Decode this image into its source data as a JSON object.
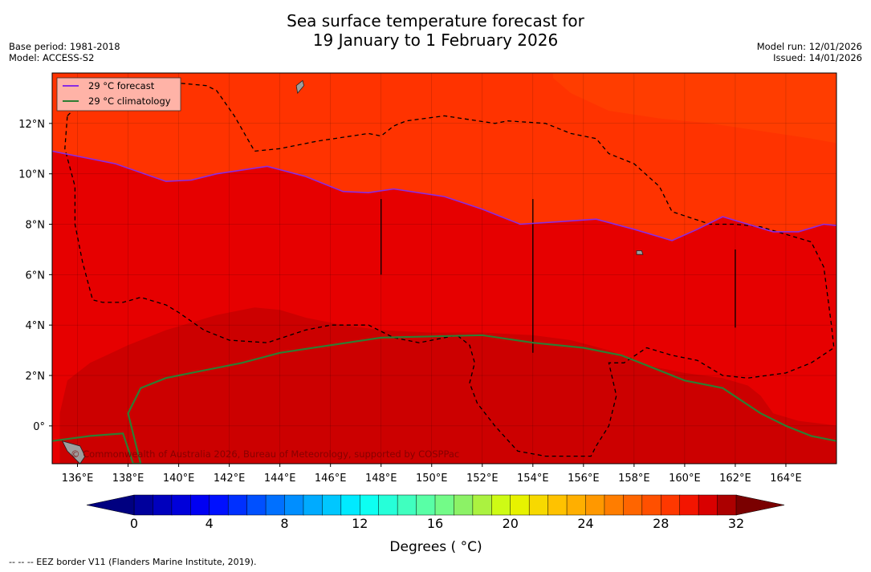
{
  "title_line1": "Sea surface temperature forecast for",
  "title_line2": "19 January to 1 February 2026",
  "base_period": "Base period: 1981-2018",
  "model": "Model: ACCESS-S2",
  "model_run": "Model run: 12/01/2026",
  "issued": "Issued: 14/01/2026",
  "copyright": "© Commonwealth of Australia 2026, Bureau of Meteorology, supported by COSPPac",
  "footnote": "--  --  -- EEZ border V11 (Flanders Marine Institute, 2019).",
  "colors": {
    "forecast_line": "#8a2be2",
    "climatology_line": "#2e7d32",
    "legend_bg": "#ffb3a7"
  },
  "chart_data": {
    "type": "heatmap",
    "title": "Sea surface temperature forecast for 19 January to 1 February 2026",
    "x_range": [
      135,
      166
    ],
    "y_range": [
      -1.5,
      14
    ],
    "x_ticks": [
      136,
      138,
      140,
      142,
      144,
      146,
      148,
      150,
      152,
      154,
      156,
      158,
      160,
      162,
      164
    ],
    "x_tick_labels": [
      "136°E",
      "138°E",
      "140°E",
      "142°E",
      "144°E",
      "146°E",
      "148°E",
      "150°E",
      "152°E",
      "154°E",
      "156°E",
      "158°E",
      "160°E",
      "162°E",
      "164°E"
    ],
    "y_ticks": [
      0,
      2,
      4,
      6,
      8,
      10,
      12
    ],
    "y_tick_labels": [
      "0°",
      "2°N",
      "4°N",
      "6°N",
      "8°N",
      "10°N",
      "12°N"
    ],
    "legend": {
      "position": "top-left",
      "entries": [
        {
          "label": "29 °C  forecast",
          "color": "#8a2be2"
        },
        {
          "label": "29 °C  climatology",
          "color": "#2e7d32"
        }
      ]
    },
    "colorbar": {
      "label": "Degrees ( °C)",
      "min": 0,
      "max": 32,
      "step": 1,
      "ticks": [
        0,
        4,
        8,
        12,
        16,
        20,
        24,
        28,
        32
      ],
      "tick_labels": [
        "0",
        "4",
        "8",
        "12",
        "16",
        "20",
        "24",
        "28",
        "32"
      ]
    },
    "fields": [
      {
        "name": "sst_28_29",
        "value_range": [
          28,
          29
        ],
        "color": "#ff3300"
      },
      {
        "name": "sst_29_30",
        "value_range": [
          29,
          30
        ],
        "color": "#e60000"
      },
      {
        "name": "sst_30_31",
        "value_range": [
          30,
          31
        ],
        "color": "#cc0000"
      }
    ],
    "forecast_29C": [
      [
        135,
        10.9
      ],
      [
        137.5,
        10.4
      ],
      [
        139.5,
        9.7
      ],
      [
        140.5,
        9.75
      ],
      [
        141.5,
        10
      ],
      [
        143.5,
        10.3
      ],
      [
        145,
        9.9
      ],
      [
        146.5,
        9.3
      ],
      [
        147.5,
        9.25
      ],
      [
        148.5,
        9.4
      ],
      [
        150.5,
        9.1
      ],
      [
        152,
        8.6
      ],
      [
        153.5,
        8.0
      ],
      [
        155,
        8.1
      ],
      [
        156.5,
        8.2
      ],
      [
        158,
        7.8
      ],
      [
        159.5,
        7.35
      ],
      [
        160.5,
        7.8
      ],
      [
        161.5,
        8.3
      ],
      [
        162.5,
        8.0
      ],
      [
        163.5,
        7.7
      ],
      [
        164.5,
        7.7
      ],
      [
        165.5,
        8.0
      ],
      [
        166,
        7.95
      ]
    ],
    "climatology_29C": [
      [
        135,
        -0.6
      ],
      [
        136.5,
        -0.4
      ],
      [
        137.8,
        -0.3
      ],
      [
        138.2,
        -1.5
      ],
      [
        138.5,
        -1.5
      ],
      [
        138,
        0.5
      ],
      [
        138.5,
        1.5
      ],
      [
        139.5,
        1.9
      ],
      [
        141,
        2.2
      ],
      [
        142.5,
        2.5
      ],
      [
        144,
        2.9
      ],
      [
        146,
        3.2
      ],
      [
        148,
        3.5
      ],
      [
        150,
        3.55
      ],
      [
        152,
        3.6
      ],
      [
        154,
        3.3
      ],
      [
        156,
        3.1
      ],
      [
        157.5,
        2.8
      ],
      [
        159,
        2.2
      ],
      [
        160,
        1.8
      ],
      [
        161.5,
        1.5
      ],
      [
        163,
        0.5
      ],
      [
        164,
        0.0
      ],
      [
        165,
        -0.4
      ],
      [
        166,
        -0.6
      ]
    ],
    "eez_border_segments": [
      [
        [
          135.6,
          12.3
        ],
        [
          136.3,
          13
        ],
        [
          137.5,
          13.3
        ],
        [
          138.6,
          13.55
        ],
        [
          140,
          13.6
        ],
        [
          141.1,
          13.5
        ],
        [
          141.5,
          13.3
        ],
        [
          142.2,
          12.3
        ],
        [
          143,
          10.9
        ],
        [
          144,
          11
        ],
        [
          145.5,
          11.3
        ],
        [
          147.5,
          11.6
        ],
        [
          148,
          11.5
        ],
        [
          148.5,
          11.9
        ],
        [
          149,
          12.1
        ],
        [
          150.5,
          12.3
        ],
        [
          152.5,
          12.0
        ],
        [
          153,
          12.1
        ],
        [
          154.5,
          12
        ],
        [
          155.5,
          11.6
        ],
        [
          156.5,
          11.4
        ],
        [
          157,
          10.8
        ],
        [
          158,
          10.4
        ],
        [
          159,
          9.5
        ],
        [
          159.5,
          8.5
        ],
        [
          161,
          8.0
        ],
        [
          162,
          8.0
        ],
        [
          163,
          7.9
        ],
        [
          164,
          7.6
        ],
        [
          165,
          7.3
        ],
        [
          165.5,
          6.3
        ],
        [
          165.8,
          4.0
        ],
        [
          165.9,
          3.1
        ],
        [
          165,
          2.5
        ],
        [
          164,
          2.1
        ],
        [
          162.5,
          1.9
        ],
        [
          161.5,
          2.0
        ],
        [
          160.5,
          2.6
        ],
        [
          159.5,
          2.8
        ],
        [
          158.5,
          3.1
        ],
        [
          157.6,
          2.5
        ],
        [
          157,
          2.5
        ],
        [
          157.3,
          1.2
        ],
        [
          157,
          0.0
        ],
        [
          156.5,
          -0.8
        ],
        [
          156.3,
          -1.2
        ],
        [
          154.5,
          -1.2
        ],
        [
          153.4,
          -1.0
        ],
        [
          152.5,
          0.0
        ],
        [
          151.8,
          0.9
        ],
        [
          151.5,
          1.7
        ],
        [
          151.7,
          2.5
        ],
        [
          151.5,
          3.2
        ],
        [
          151.0,
          3.6
        ],
        [
          149.5,
          3.3
        ],
        [
          148.5,
          3.5
        ],
        [
          147.5,
          4.0
        ],
        [
          146,
          4.0
        ],
        [
          145,
          3.8
        ],
        [
          143.5,
          3.3
        ],
        [
          142,
          3.4
        ],
        [
          141,
          3.8
        ],
        [
          140,
          4.5
        ],
        [
          139.5,
          4.8
        ],
        [
          138.5,
          5.1
        ],
        [
          137.8,
          4.9
        ],
        [
          137,
          4.9
        ],
        [
          136.6,
          5.0
        ],
        [
          136.2,
          6.5
        ],
        [
          135.9,
          8
        ],
        [
          135.9,
          9.5
        ],
        [
          135.5,
          11
        ],
        [
          135.6,
          12.3
        ]
      ]
    ],
    "land": [
      {
        "name": "new-guinea-coast",
        "poly": [
          [
            135.4,
            -0.6
          ],
          [
            136.1,
            -0.8
          ],
          [
            136.3,
            -1.2
          ],
          [
            136.1,
            -1.5
          ],
          [
            135.6,
            -1.0
          ]
        ]
      },
      {
        "name": "guam",
        "poly": [
          [
            144.7,
            13.2
          ],
          [
            144.95,
            13.5
          ],
          [
            144.9,
            13.7
          ],
          [
            144.65,
            13.5
          ]
        ]
      },
      {
        "name": "pohnpei",
        "poly": [
          [
            158.1,
            6.8
          ],
          [
            158.35,
            6.8
          ],
          [
            158.3,
            6.95
          ],
          [
            158.1,
            6.95
          ]
        ]
      }
    ],
    "meridian_marks": [
      {
        "lon": 148,
        "lat_from": 6,
        "lat_to": 9
      },
      {
        "lon": 154,
        "lat_from": 2.9,
        "lat_to": 9
      },
      {
        "lon": 162,
        "lat_from": 3.9,
        "lat_to": 7
      }
    ]
  }
}
